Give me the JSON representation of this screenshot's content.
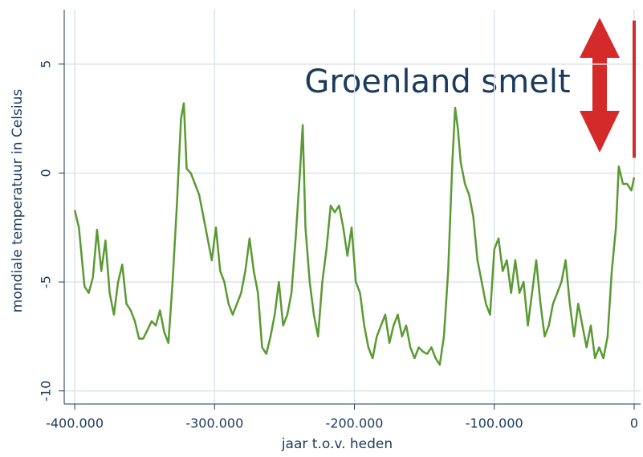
{
  "chart_data": {
    "type": "line",
    "x_label": "jaar t.o.v. heden",
    "y_label": "mondiale temperatuur in Celsius",
    "annotation": "Groenland smelt",
    "xlim": [
      -407500,
      4600
    ],
    "ylim": [
      -10.6,
      7.5
    ],
    "xticks": [
      {
        "value": -400000,
        "label": "-400.000"
      },
      {
        "value": -300000,
        "label": "-300.000"
      },
      {
        "value": -200000,
        "label": "-200.000"
      },
      {
        "value": -100000,
        "label": "-100.000"
      },
      0
    ],
    "yticks": [
      -10,
      -5,
      0,
      5
    ],
    "grid": true,
    "series": [
      {
        "color": "#5a9a32",
        "x": [
          -400000,
          -397000,
          -393000,
          -390000,
          -387000,
          -384000,
          -381000,
          -378000,
          -375000,
          -372000,
          -369000,
          -366000,
          -363000,
          -360000,
          -357000,
          -354000,
          -351000,
          -348000,
          -345000,
          -342000,
          -339000,
          -336000,
          -333000,
          -330000,
          -327000,
          -324000,
          -322000,
          -320000,
          -317000,
          -314000,
          -311000,
          -308000,
          -305000,
          -302000,
          -299000,
          -296000,
          -293000,
          -290000,
          -287000,
          -284000,
          -281000,
          -278000,
          -275000,
          -272000,
          -269000,
          -266000,
          -263000,
          -260000,
          -257000,
          -254000,
          -251000,
          -248000,
          -245000,
          -242000,
          -239000,
          -237000,
          -235000,
          -232000,
          -229000,
          -226000,
          -223000,
          -220000,
          -217000,
          -214000,
          -211000,
          -208000,
          -205000,
          -202000,
          -199000,
          -196000,
          -193000,
          -190000,
          -187000,
          -184000,
          -181000,
          -178000,
          -175000,
          -172000,
          -169000,
          -166000,
          -163000,
          -160000,
          -157000,
          -154000,
          -151000,
          -148000,
          -145000,
          -142000,
          -139000,
          -136000,
          -133000,
          -130000,
          -128000,
          -126000,
          -124000,
          -121000,
          -118000,
          -115000,
          -112000,
          -109000,
          -106000,
          -103000,
          -100000,
          -97000,
          -94000,
          -91000,
          -88000,
          -85000,
          -82000,
          -79000,
          -76000,
          -73000,
          -70000,
          -67000,
          -64000,
          -61000,
          -58000,
          -55000,
          -52000,
          -49000,
          -46000,
          -43000,
          -40000,
          -37000,
          -34000,
          -31000,
          -28000,
          -25000,
          -22000,
          -19000,
          -16000,
          -13000,
          -11000,
          -8000,
          -5000,
          -2000,
          0
        ],
        "values": [
          -1.7,
          -2.5,
          -5.2,
          -5.5,
          -4.8,
          -2.6,
          -4.5,
          -3.1,
          -5.5,
          -6.5,
          -5.0,
          -4.2,
          -6.0,
          -6.3,
          -6.8,
          -7.6,
          -7.6,
          -7.2,
          -6.8,
          -7.0,
          -6.3,
          -7.3,
          -7.8,
          -5.0,
          -1.5,
          2.5,
          3.2,
          0.2,
          0.0,
          -0.5,
          -1.0,
          -2.0,
          -3.0,
          -4.0,
          -2.5,
          -4.5,
          -5.0,
          -6.0,
          -6.5,
          -6.0,
          -5.5,
          -4.5,
          -3.0,
          -4.5,
          -5.5,
          -8.0,
          -8.3,
          -7.5,
          -6.5,
          -5.0,
          -7.0,
          -6.5,
          -5.5,
          -3.0,
          0.0,
          2.2,
          -2.5,
          -5.0,
          -6.5,
          -7.5,
          -5.0,
          -3.5,
          -1.5,
          -1.8,
          -1.5,
          -2.5,
          -3.8,
          -2.5,
          -5.0,
          -5.5,
          -7.0,
          -8.0,
          -8.5,
          -7.5,
          -7.0,
          -6.5,
          -7.8,
          -7.0,
          -6.5,
          -7.5,
          -7.0,
          -8.0,
          -8.5,
          -8.0,
          -8.2,
          -8.3,
          -8.0,
          -8.5,
          -8.8,
          -7.5,
          -4.5,
          0.5,
          3.0,
          2.0,
          0.5,
          -0.5,
          -1.0,
          -2.0,
          -4.0,
          -5.0,
          -6.0,
          -6.5,
          -3.5,
          -3.0,
          -4.5,
          -4.0,
          -5.5,
          -4.0,
          -5.5,
          -5.0,
          -7.0,
          -5.5,
          -4.0,
          -6.0,
          -7.5,
          -7.0,
          -6.0,
          -5.5,
          -5.0,
          -4.0,
          -6.0,
          -7.5,
          -6.0,
          -7.0,
          -8.0,
          -7.0,
          -8.5,
          -8.0,
          -8.5,
          -7.5,
          -4.5,
          -2.5,
          0.3,
          -0.5,
          -0.5,
          -0.8,
          -0.2
        ]
      },
      {
        "color": "#d42a2a",
        "x": [
          0,
          0
        ],
        "values": [
          0.7,
          7.0
        ]
      }
    ]
  }
}
